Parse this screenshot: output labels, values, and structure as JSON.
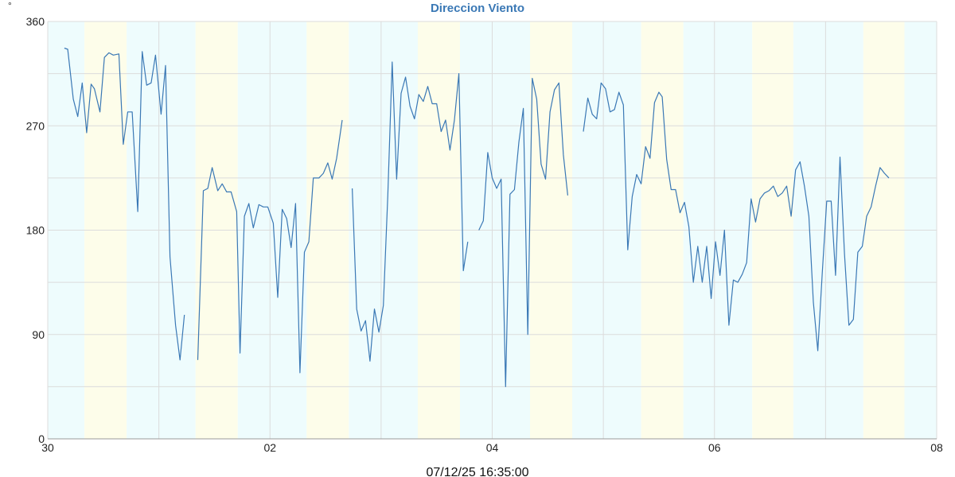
{
  "chart_data": {
    "type": "line",
    "title": "Direccion Viento",
    "unit_label": "°",
    "footer_timestamp": "07/12/25 16:35:00",
    "x_ticks": [
      "30",
      "02",
      "04",
      "06",
      "08"
    ],
    "y_ticks": [
      "0",
      "90",
      "180",
      "270",
      "360"
    ],
    "ylim": [
      0,
      360
    ],
    "xlim_days": [
      0,
      8
    ],
    "grid": true,
    "colors": {
      "line": "#3a78b5",
      "night_band": "#eefcfd",
      "day_band": "#fdfdea",
      "grid": "#dcdcdc",
      "title": "#3a78b5"
    },
    "bands": [
      {
        "start": 0.0,
        "end": 0.33,
        "kind": "night"
      },
      {
        "start": 0.33,
        "end": 0.71,
        "kind": "day"
      },
      {
        "start": 0.71,
        "end": 1.33,
        "kind": "night"
      },
      {
        "start": 1.33,
        "end": 1.71,
        "kind": "day"
      },
      {
        "start": 1.71,
        "end": 2.33,
        "kind": "night"
      },
      {
        "start": 2.33,
        "end": 2.71,
        "kind": "day"
      },
      {
        "start": 2.71,
        "end": 3.33,
        "kind": "night"
      },
      {
        "start": 3.33,
        "end": 3.71,
        "kind": "day"
      },
      {
        "start": 3.71,
        "end": 4.34,
        "kind": "night"
      },
      {
        "start": 4.34,
        "end": 4.72,
        "kind": "day"
      },
      {
        "start": 4.72,
        "end": 5.34,
        "kind": "night"
      },
      {
        "start": 5.34,
        "end": 5.72,
        "kind": "day"
      },
      {
        "start": 5.72,
        "end": 6.34,
        "kind": "night"
      },
      {
        "start": 6.34,
        "end": 6.71,
        "kind": "day"
      },
      {
        "start": 6.71,
        "end": 7.34,
        "kind": "night"
      },
      {
        "start": 7.34,
        "end": 7.71,
        "kind": "day"
      },
      {
        "start": 7.71,
        "end": 8.0,
        "kind": "night"
      }
    ],
    "series": [
      {
        "segments": [
          [
            [
              0.15,
              337
            ],
            [
              0.18,
              336
            ],
            [
              0.23,
              293
            ],
            [
              0.27,
              278
            ],
            [
              0.31,
              307
            ],
            [
              0.35,
              264
            ],
            [
              0.39,
              306
            ],
            [
              0.42,
              302
            ],
            [
              0.47,
              282
            ],
            [
              0.51,
              329
            ],
            [
              0.55,
              333
            ],
            [
              0.59,
              331
            ],
            [
              0.64,
              332
            ],
            [
              0.68,
              254
            ],
            [
              0.72,
              282
            ],
            [
              0.76,
              282
            ],
            [
              0.81,
              196
            ],
            [
              0.85,
              334
            ],
            [
              0.89,
              305
            ],
            [
              0.93,
              307
            ],
            [
              0.97,
              331
            ],
            [
              1.02,
              280
            ],
            [
              1.06,
              322
            ],
            [
              1.1,
              157
            ],
            [
              1.15,
              98
            ],
            [
              1.19,
              68
            ],
            [
              1.23,
              107
            ]
          ],
          [
            [
              1.35,
              68
            ],
            [
              1.4,
              214
            ],
            [
              1.44,
              216
            ],
            [
              1.48,
              234
            ],
            [
              1.53,
              214
            ],
            [
              1.57,
              220
            ],
            [
              1.61,
              213
            ],
            [
              1.65,
              213
            ],
            [
              1.7,
              196
            ],
            [
              1.73,
              74
            ],
            [
              1.77,
              192
            ],
            [
              1.81,
              203
            ],
            [
              1.85,
              182
            ],
            [
              1.9,
              202
            ],
            [
              1.94,
              200
            ],
            [
              1.98,
              200
            ],
            [
              2.03,
              186
            ],
            [
              2.07,
              122
            ],
            [
              2.11,
              198
            ],
            [
              2.15,
              190
            ],
            [
              2.19,
              165
            ],
            [
              2.23,
              203
            ],
            [
              2.27,
              57
            ],
            [
              2.31,
              161
            ],
            [
              2.35,
              170
            ],
            [
              2.39,
              225
            ],
            [
              2.44,
              225
            ],
            [
              2.48,
              229
            ],
            [
              2.52,
              238
            ],
            [
              2.56,
              224
            ],
            [
              2.6,
              242
            ],
            [
              2.65,
              275
            ]
          ],
          [
            [
              2.74,
              216
            ],
            [
              2.78,
              112
            ],
            [
              2.82,
              93
            ],
            [
              2.86,
              102
            ],
            [
              2.9,
              67
            ],
            [
              2.94,
              112
            ],
            [
              2.98,
              92
            ],
            [
              3.02,
              115
            ],
            [
              3.06,
              210
            ],
            [
              3.1,
              325
            ],
            [
              3.14,
              224
            ],
            [
              3.18,
              298
            ],
            [
              3.22,
              312
            ],
            [
              3.26,
              287
            ],
            [
              3.3,
              276
            ],
            [
              3.34,
              297
            ],
            [
              3.38,
              291
            ],
            [
              3.42,
              304
            ],
            [
              3.46,
              289
            ],
            [
              3.5,
              289
            ],
            [
              3.54,
              265
            ],
            [
              3.58,
              275
            ],
            [
              3.62,
              249
            ],
            [
              3.66,
              275
            ],
            [
              3.7,
              315
            ],
            [
              3.74,
              145
            ],
            [
              3.78,
              170
            ]
          ],
          [
            [
              3.88,
              180
            ],
            [
              3.92,
              188
            ],
            [
              3.96,
              247
            ],
            [
              4.0,
              225
            ],
            [
              4.04,
              216
            ],
            [
              4.08,
              224
            ],
            [
              4.12,
              45
            ],
            [
              4.16,
              211
            ],
            [
              4.2,
              215
            ],
            [
              4.24,
              256
            ],
            [
              4.28,
              285
            ],
            [
              4.32,
              90
            ],
            [
              4.36,
              311
            ],
            [
              4.4,
              293
            ],
            [
              4.44,
              237
            ],
            [
              4.48,
              224
            ],
            [
              4.52,
              282
            ],
            [
              4.56,
              301
            ],
            [
              4.6,
              307
            ],
            [
              4.64,
              245
            ],
            [
              4.68,
              210
            ]
          ],
          [
            [
              4.82,
              265
            ],
            [
              4.86,
              294
            ],
            [
              4.9,
              280
            ],
            [
              4.94,
              276
            ],
            [
              4.98,
              307
            ],
            [
              5.02,
              302
            ],
            [
              5.06,
              282
            ],
            [
              5.1,
              284
            ],
            [
              5.14,
              299
            ],
            [
              5.18,
              288
            ],
            [
              5.22,
              163
            ],
            [
              5.26,
              209
            ],
            [
              5.3,
              228
            ],
            [
              5.34,
              220
            ],
            [
              5.38,
              252
            ],
            [
              5.42,
              242
            ],
            [
              5.46,
              290
            ],
            [
              5.5,
              299
            ],
            [
              5.53,
              295
            ],
            [
              5.57,
              241
            ],
            [
              5.61,
              215
            ],
            [
              5.65,
              215
            ],
            [
              5.69,
              195
            ],
            [
              5.73,
              204
            ],
            [
              5.77,
              183
            ],
            [
              5.81,
              135
            ],
            [
              5.85,
              166
            ],
            [
              5.89,
              135
            ],
            [
              5.93,
              166
            ],
            [
              5.97,
              121
            ],
            [
              6.01,
              170
            ],
            [
              6.05,
              141
            ],
            [
              6.09,
              180
            ],
            [
              6.13,
              98
            ],
            [
              6.17,
              137
            ],
            [
              6.21,
              135
            ],
            [
              6.25,
              142
            ],
            [
              6.29,
              152
            ],
            [
              6.33,
              207
            ],
            [
              6.37,
              187
            ],
            [
              6.41,
              207
            ],
            [
              6.45,
              212
            ],
            [
              6.49,
              214
            ],
            [
              6.53,
              218
            ],
            [
              6.57,
              209
            ],
            [
              6.61,
              212
            ],
            [
              6.65,
              218
            ],
            [
              6.69,
              192
            ],
            [
              6.73,
              232
            ],
            [
              6.77,
              239
            ],
            [
              6.81,
              218
            ],
            [
              6.85,
              192
            ],
            [
              6.89,
              118
            ],
            [
              6.93,
              76
            ],
            [
              6.97,
              143
            ],
            [
              7.01,
              205
            ],
            [
              7.05,
              205
            ],
            [
              7.09,
              141
            ],
            [
              7.13,
              243
            ],
            [
              7.17,
              160
            ],
            [
              7.21,
              98
            ],
            [
              7.25,
              103
            ],
            [
              7.29,
              161
            ],
            [
              7.33,
              166
            ],
            [
              7.37,
              192
            ],
            [
              7.41,
              200
            ],
            [
              7.45,
              218
            ],
            [
              7.49,
              234
            ],
            [
              7.53,
              229
            ],
            [
              7.57,
              225
            ]
          ]
        ]
      }
    ]
  }
}
